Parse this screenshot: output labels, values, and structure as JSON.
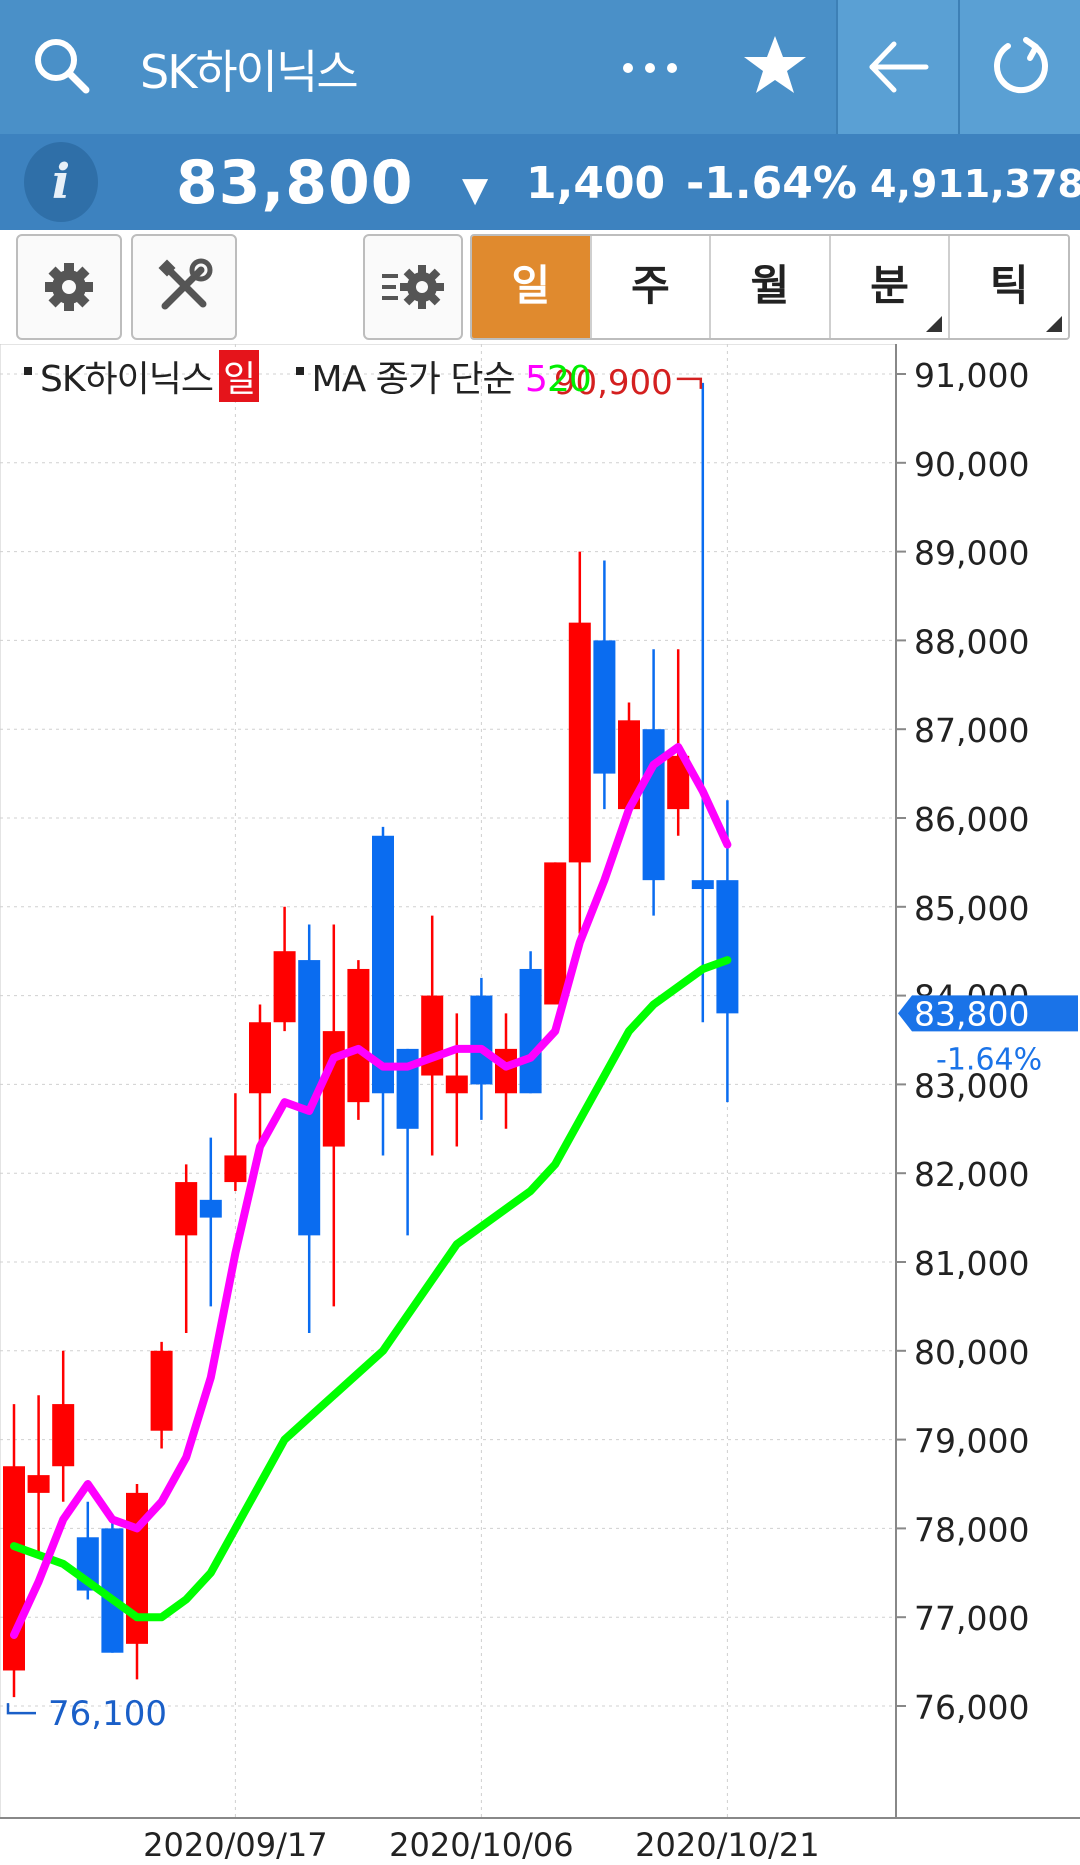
{
  "app_bar": {
    "title": "SK하이닉스",
    "icons": [
      "search-icon",
      "more-icon",
      "star-icon",
      "back-arrow-icon",
      "refresh-icon"
    ]
  },
  "quote": {
    "price": "83,800",
    "direction": "▼",
    "change": "1,400",
    "change_pct": "-1.64%",
    "volume": "4,911,378",
    "info_label": "i"
  },
  "toolbar": {
    "icons": [
      "settings-icon",
      "tools-icon",
      "indicator-settings-icon"
    ],
    "tabs": [
      {
        "label": "일",
        "active": true,
        "has_menu": false
      },
      {
        "label": "주",
        "active": false,
        "has_menu": false
      },
      {
        "label": "월",
        "active": false,
        "has_menu": false
      },
      {
        "label": "분",
        "active": false,
        "has_menu": true
      },
      {
        "label": "틱",
        "active": false,
        "has_menu": true
      }
    ]
  },
  "legend": {
    "name": "SK하이닉스",
    "period_badge": "일",
    "ma_label": "MA 종가 단순",
    "ma_short": "5",
    "ma_long": "20"
  },
  "colors": {
    "up": "#ff0000",
    "down": "#0a6cf0",
    "ma5": "#ff00ff",
    "ma20": "#00ff00",
    "header": "#4a90c8",
    "active_tab": "#e08a2e"
  },
  "chart_data": {
    "type": "candlestick",
    "ylim": [
      75700,
      91500
    ],
    "y_ticks": [
      "91,000",
      "90,000",
      "89,000",
      "88,000",
      "87,000",
      "86,000",
      "85,000",
      "84,000",
      "83,000",
      "82,000",
      "81,000",
      "80,000",
      "79,000",
      "78,000",
      "77,000",
      "76,000"
    ],
    "x_labels": [
      {
        "label": "2020/09/17",
        "index": 9
      },
      {
        "label": "2020/10/06",
        "index": 19
      },
      {
        "label": "2020/10/21",
        "index": 29
      }
    ],
    "candles": [
      {
        "o": 76400,
        "c": 78700,
        "h": 79400,
        "l": 76100
      },
      {
        "o": 78400,
        "c": 78600,
        "h": 79500,
        "l": 77700
      },
      {
        "o": 78700,
        "c": 79400,
        "h": 80000,
        "l": 78300
      },
      {
        "o": 77900,
        "c": 77300,
        "h": 78300,
        "l": 77200
      },
      {
        "o": 78000,
        "c": 76600,
        "h": 78100,
        "l": 76600
      },
      {
        "o": 76700,
        "c": 78400,
        "h": 78500,
        "l": 76300
      },
      {
        "o": 79100,
        "c": 80000,
        "h": 80100,
        "l": 78900
      },
      {
        "o": 81300,
        "c": 81900,
        "h": 82100,
        "l": 80200
      },
      {
        "o": 81700,
        "c": 81500,
        "h": 82400,
        "l": 80500
      },
      {
        "o": 81900,
        "c": 82200,
        "h": 82900,
        "l": 81800
      },
      {
        "o": 82900,
        "c": 83700,
        "h": 83900,
        "l": 82200
      },
      {
        "o": 83700,
        "c": 84500,
        "h": 85000,
        "l": 83600
      },
      {
        "o": 84400,
        "c": 81300,
        "h": 84800,
        "l": 80200
      },
      {
        "o": 82300,
        "c": 83600,
        "h": 84800,
        "l": 80500
      },
      {
        "o": 82800,
        "c": 84300,
        "h": 84400,
        "l": 82600
      },
      {
        "o": 85800,
        "c": 82900,
        "h": 85900,
        "l": 82200
      },
      {
        "o": 83400,
        "c": 82500,
        "h": 83400,
        "l": 81300
      },
      {
        "o": 83100,
        "c": 84000,
        "h": 84900,
        "l": 82200
      },
      {
        "o": 82900,
        "c": 83100,
        "h": 83800,
        "l": 82300
      },
      {
        "o": 84000,
        "c": 83000,
        "h": 84200,
        "l": 82600
      },
      {
        "o": 82900,
        "c": 83400,
        "h": 83800,
        "l": 82500
      },
      {
        "o": 84300,
        "c": 82900,
        "h": 84500,
        "l": 82900
      },
      {
        "o": 83900,
        "c": 85500,
        "h": 85500,
        "l": 83900
      },
      {
        "o": 85500,
        "c": 88200,
        "h": 89000,
        "l": 84700
      },
      {
        "o": 88000,
        "c": 86500,
        "h": 88900,
        "l": 86100
      },
      {
        "o": 86100,
        "c": 87100,
        "h": 87300,
        "l": 86100
      },
      {
        "o": 87000,
        "c": 85300,
        "h": 87900,
        "l": 84900
      },
      {
        "o": 86100,
        "c": 86700,
        "h": 87900,
        "l": 85800
      },
      {
        "o": 85300,
        "c": 85200,
        "h": 90900,
        "l": 83700
      },
      {
        "o": 85300,
        "c": 83800,
        "h": 86200,
        "l": 82800
      }
    ],
    "ma5": [
      76800,
      77400,
      78100,
      78500,
      78100,
      78000,
      78300,
      78800,
      79700,
      81100,
      82300,
      82800,
      82700,
      83300,
      83400,
      83200,
      83200,
      83300,
      83400,
      83400,
      83200,
      83300,
      83600,
      84600,
      85300,
      86100,
      86600,
      86800,
      86300,
      85700
    ],
    "ma20": [
      77800,
      77700,
      77600,
      77400,
      77200,
      77000,
      77000,
      77200,
      77500,
      78000,
      78500,
      79000,
      79250,
      79500,
      79750,
      80000,
      80400,
      80800,
      81200,
      81400,
      81600,
      81800,
      82100,
      82600,
      83100,
      83600,
      83900,
      84100,
      84300,
      84400
    ],
    "annotations": {
      "max": {
        "label": "90,900",
        "value": 90900
      },
      "min": {
        "label": "76,100",
        "value": 76100
      },
      "current": {
        "label": "83,800",
        "value": 83800,
        "pct": "-1.64%"
      }
    }
  }
}
